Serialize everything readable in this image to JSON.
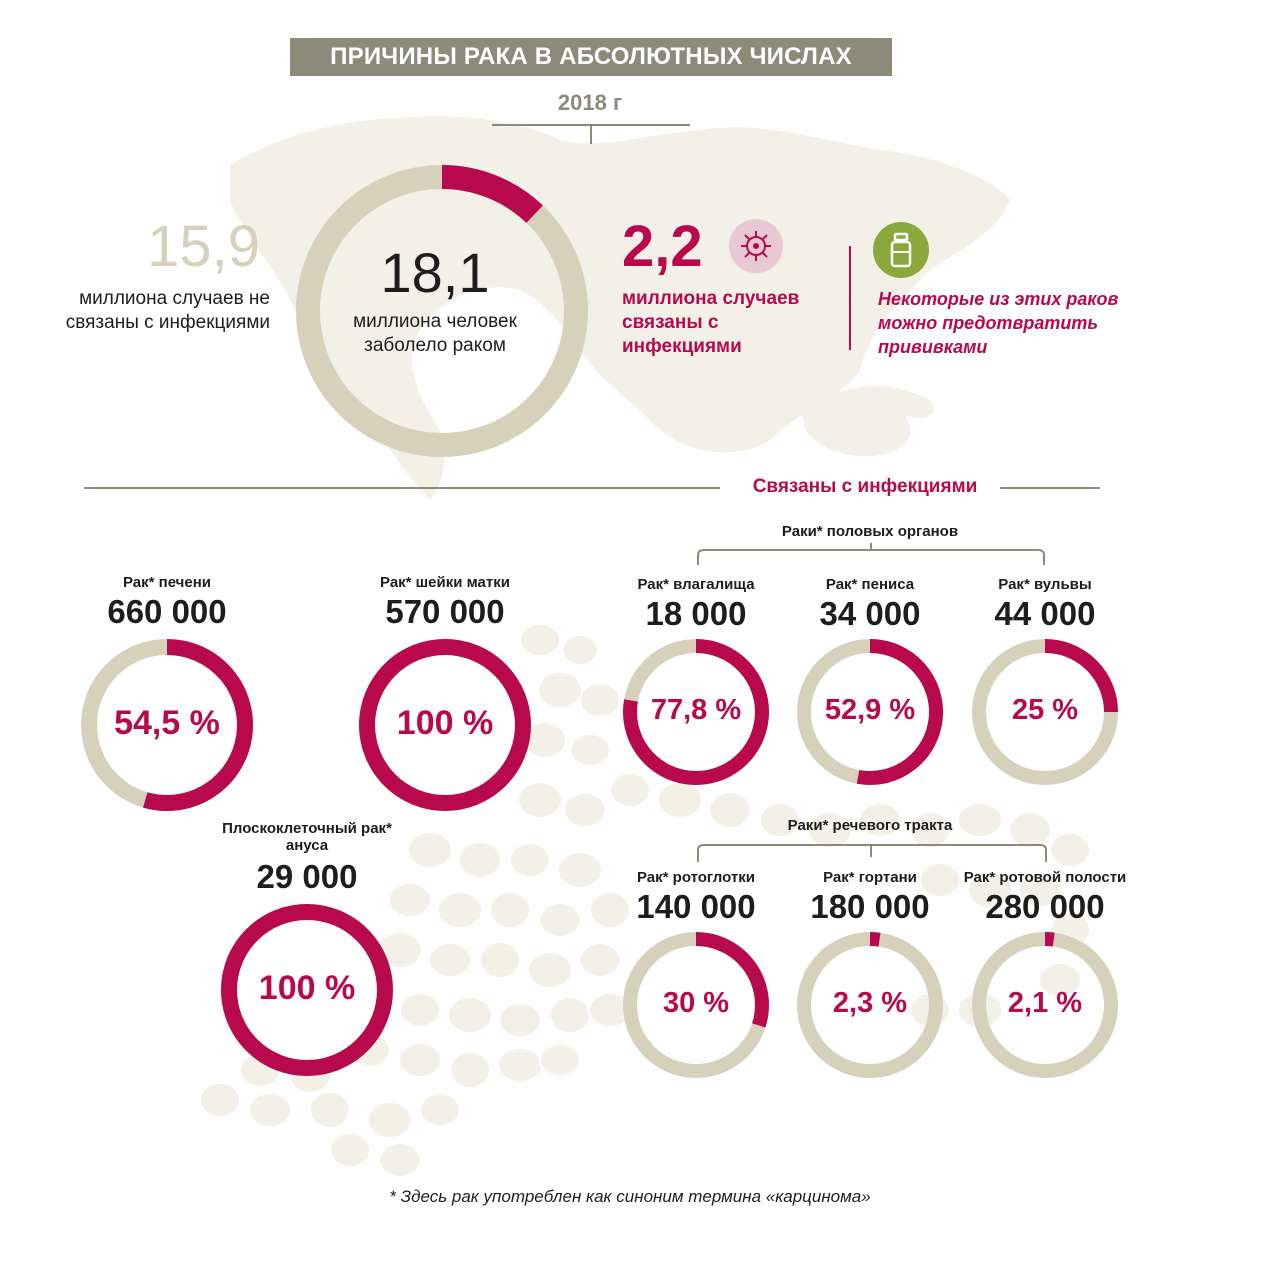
{
  "header": {
    "title": "ПРИЧИНЫ РАКА В АБСОЛЮТНЫХ ЧИСЛАХ",
    "year": "2018 г"
  },
  "summary": {
    "not_infection_value": "15,9",
    "not_infection_text": "миллиона случаев не связаны с инфекциями",
    "total_value": "18,1",
    "total_text": "миллиона человек заболело раком",
    "infection_value": "2,2",
    "infection_text": "миллиона случаев связаны с инфекциями",
    "vaccine_text": "Некоторые из этих раков можно предотвратить прививками",
    "share_infection": 0.1215
  },
  "section": {
    "label": "Связаны с инфекциями",
    "genital_group": "Раки* половых органов",
    "speech_group": "Раки* речевого тракта"
  },
  "colors": {
    "accent": "#b8094f",
    "neutral": "#d7d1bb",
    "title_bg": "#8c8a7b",
    "map": "#f3f0e7",
    "vaccine": "#8aa83b"
  },
  "icons": {
    "virus": "virus-icon",
    "vaccine": "vaccine-vial-icon"
  },
  "chart_data": {
    "type": "pie",
    "title": "ПРИЧИНЫ РАКА В АБСОЛЮТНЫХ ЧИСЛАХ",
    "subtitle": "2018 г",
    "unit": "% случаев, связанных с инфекциями",
    "items": [
      {
        "label": "Рак* печени",
        "cases": "660 000",
        "pct_label": "54,5 %",
        "pct": 54.5
      },
      {
        "label": "Рак* шейки матки",
        "cases": "570 000",
        "pct_label": "100 %",
        "pct": 100
      },
      {
        "label": "Плоскоклеточный рак* ануса",
        "cases": "29 000",
        "pct_label": "100 %",
        "pct": 100
      },
      {
        "label": "Рак* влагалища",
        "cases": "18 000",
        "pct_label": "77,8 %",
        "pct": 77.8
      },
      {
        "label": "Рак* пениса",
        "cases": "34 000",
        "pct_label": "52,9 %",
        "pct": 52.9
      },
      {
        "label": "Рак* вульвы",
        "cases": "44 000",
        "pct_label": "25 %",
        "pct": 25
      },
      {
        "label": "Рак* ротоглотки",
        "cases": "140 000",
        "pct_label": "30 %",
        "pct": 30
      },
      {
        "label": "Рак* гортани",
        "cases": "180 000",
        "pct_label": "2,3 %",
        "pct": 2.3
      },
      {
        "label": "Рак* ротовой полости",
        "cases": "280 000",
        "pct_label": "2,1 %",
        "pct": 2.1
      }
    ]
  },
  "footnote": "* Здесь рак употреблен как синоним термина «карциномa»"
}
